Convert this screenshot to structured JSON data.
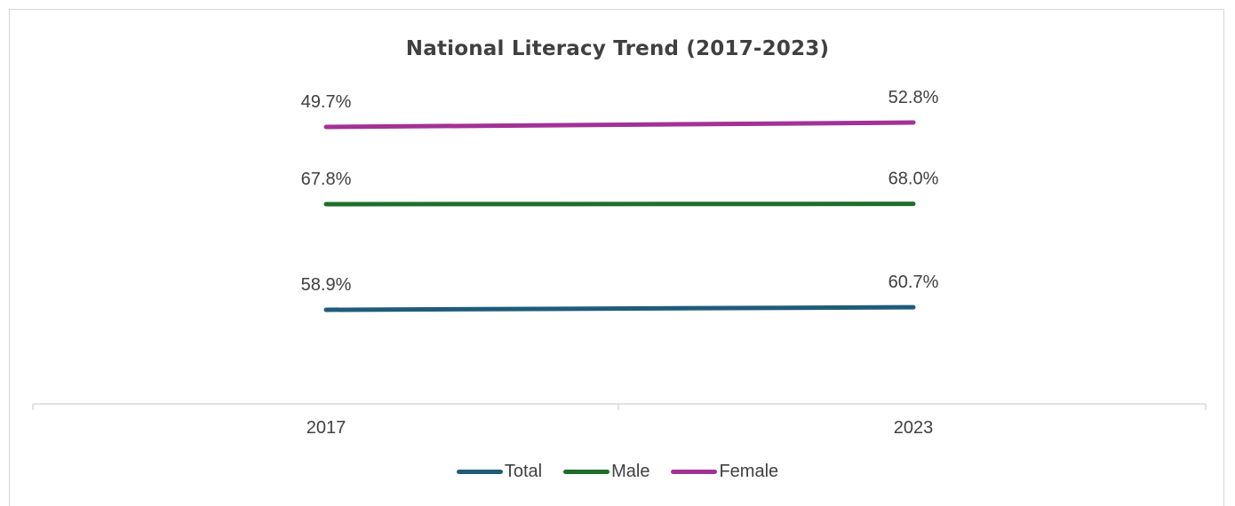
{
  "chart_data": {
    "type": "line",
    "title": "National Literacy Trend (2017-2023)",
    "xlabel": "",
    "ylabel": "",
    "categories": [
      "2017",
      "2023"
    ],
    "series": [
      {
        "name": "Total",
        "values": [
          58.9,
          60.7
        ],
        "labels": [
          "58.9%",
          "60.7%"
        ],
        "color": "#1f5c7a"
      },
      {
        "name": "Male",
        "values": [
          67.8,
          68.0
        ],
        "labels": [
          "67.8%",
          "68.0%"
        ],
        "color": "#1e6e2b"
      },
      {
        "name": "Female",
        "values": [
          49.7,
          52.8
        ],
        "labels": [
          "49.7%",
          "52.8%"
        ],
        "color": "#a23295"
      }
    ],
    "grid": false,
    "legend_position": "bottom"
  }
}
